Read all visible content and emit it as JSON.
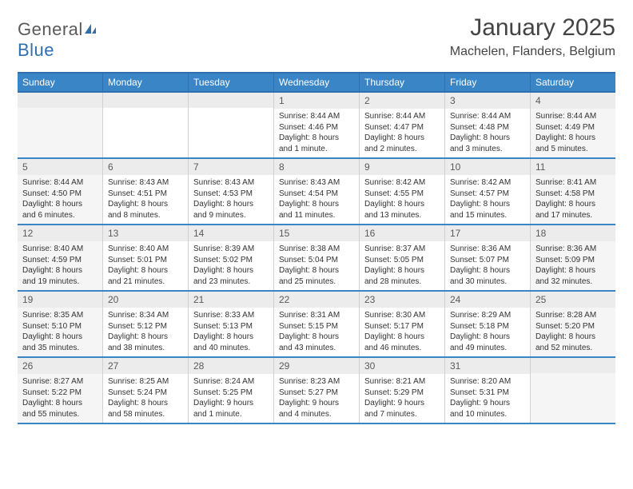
{
  "logo": {
    "part1": "General",
    "part2": "Blue"
  },
  "header": {
    "month_title": "January 2025",
    "location": "Machelen, Flanders, Belgium"
  },
  "colors": {
    "header_blue": "#3a85c6",
    "header_border": "#2f6fae",
    "row_divider": "#3a85c6",
    "day_num_bg": "#ececec",
    "weekend_bg": "#f5f5f5",
    "text": "#333333",
    "title_text": "#444444"
  },
  "weekdays": [
    "Sunday",
    "Monday",
    "Tuesday",
    "Wednesday",
    "Thursday",
    "Friday",
    "Saturday"
  ],
  "weeks": [
    [
      {
        "n": "",
        "sr": "",
        "ss": "",
        "dl": ""
      },
      {
        "n": "",
        "sr": "",
        "ss": "",
        "dl": ""
      },
      {
        "n": "",
        "sr": "",
        "ss": "",
        "dl": ""
      },
      {
        "n": "1",
        "sr": "8:44 AM",
        "ss": "4:46 PM",
        "dl": "8 hours and 1 minute."
      },
      {
        "n": "2",
        "sr": "8:44 AM",
        "ss": "4:47 PM",
        "dl": "8 hours and 2 minutes."
      },
      {
        "n": "3",
        "sr": "8:44 AM",
        "ss": "4:48 PM",
        "dl": "8 hours and 3 minutes."
      },
      {
        "n": "4",
        "sr": "8:44 AM",
        "ss": "4:49 PM",
        "dl": "8 hours and 5 minutes."
      }
    ],
    [
      {
        "n": "5",
        "sr": "8:44 AM",
        "ss": "4:50 PM",
        "dl": "8 hours and 6 minutes."
      },
      {
        "n": "6",
        "sr": "8:43 AM",
        "ss": "4:51 PM",
        "dl": "8 hours and 8 minutes."
      },
      {
        "n": "7",
        "sr": "8:43 AM",
        "ss": "4:53 PM",
        "dl": "8 hours and 9 minutes."
      },
      {
        "n": "8",
        "sr": "8:43 AM",
        "ss": "4:54 PM",
        "dl": "8 hours and 11 minutes."
      },
      {
        "n": "9",
        "sr": "8:42 AM",
        "ss": "4:55 PM",
        "dl": "8 hours and 13 minutes."
      },
      {
        "n": "10",
        "sr": "8:42 AM",
        "ss": "4:57 PM",
        "dl": "8 hours and 15 minutes."
      },
      {
        "n": "11",
        "sr": "8:41 AM",
        "ss": "4:58 PM",
        "dl": "8 hours and 17 minutes."
      }
    ],
    [
      {
        "n": "12",
        "sr": "8:40 AM",
        "ss": "4:59 PM",
        "dl": "8 hours and 19 minutes."
      },
      {
        "n": "13",
        "sr": "8:40 AM",
        "ss": "5:01 PM",
        "dl": "8 hours and 21 minutes."
      },
      {
        "n": "14",
        "sr": "8:39 AM",
        "ss": "5:02 PM",
        "dl": "8 hours and 23 minutes."
      },
      {
        "n": "15",
        "sr": "8:38 AM",
        "ss": "5:04 PM",
        "dl": "8 hours and 25 minutes."
      },
      {
        "n": "16",
        "sr": "8:37 AM",
        "ss": "5:05 PM",
        "dl": "8 hours and 28 minutes."
      },
      {
        "n": "17",
        "sr": "8:36 AM",
        "ss": "5:07 PM",
        "dl": "8 hours and 30 minutes."
      },
      {
        "n": "18",
        "sr": "8:36 AM",
        "ss": "5:09 PM",
        "dl": "8 hours and 32 minutes."
      }
    ],
    [
      {
        "n": "19",
        "sr": "8:35 AM",
        "ss": "5:10 PM",
        "dl": "8 hours and 35 minutes."
      },
      {
        "n": "20",
        "sr": "8:34 AM",
        "ss": "5:12 PM",
        "dl": "8 hours and 38 minutes."
      },
      {
        "n": "21",
        "sr": "8:33 AM",
        "ss": "5:13 PM",
        "dl": "8 hours and 40 minutes."
      },
      {
        "n": "22",
        "sr": "8:31 AM",
        "ss": "5:15 PM",
        "dl": "8 hours and 43 minutes."
      },
      {
        "n": "23",
        "sr": "8:30 AM",
        "ss": "5:17 PM",
        "dl": "8 hours and 46 minutes."
      },
      {
        "n": "24",
        "sr": "8:29 AM",
        "ss": "5:18 PM",
        "dl": "8 hours and 49 minutes."
      },
      {
        "n": "25",
        "sr": "8:28 AM",
        "ss": "5:20 PM",
        "dl": "8 hours and 52 minutes."
      }
    ],
    [
      {
        "n": "26",
        "sr": "8:27 AM",
        "ss": "5:22 PM",
        "dl": "8 hours and 55 minutes."
      },
      {
        "n": "27",
        "sr": "8:25 AM",
        "ss": "5:24 PM",
        "dl": "8 hours and 58 minutes."
      },
      {
        "n": "28",
        "sr": "8:24 AM",
        "ss": "5:25 PM",
        "dl": "9 hours and 1 minute."
      },
      {
        "n": "29",
        "sr": "8:23 AM",
        "ss": "5:27 PM",
        "dl": "9 hours and 4 minutes."
      },
      {
        "n": "30",
        "sr": "8:21 AM",
        "ss": "5:29 PM",
        "dl": "9 hours and 7 minutes."
      },
      {
        "n": "31",
        "sr": "8:20 AM",
        "ss": "5:31 PM",
        "dl": "9 hours and 10 minutes."
      },
      {
        "n": "",
        "sr": "",
        "ss": "",
        "dl": ""
      }
    ]
  ],
  "labels": {
    "sunrise": "Sunrise:",
    "sunset": "Sunset:",
    "daylight": "Daylight:"
  }
}
